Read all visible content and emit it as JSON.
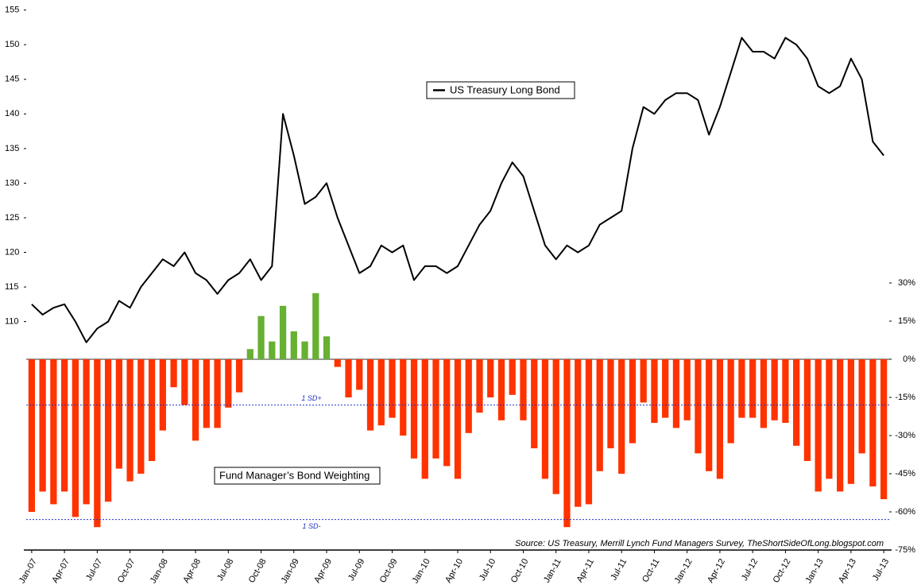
{
  "chart_data": {
    "type": "bar",
    "categories": [
      "Jan-07",
      null,
      null,
      "Apr-07",
      null,
      null,
      "Jul-07",
      null,
      null,
      "Oct-07",
      null,
      null,
      "Jan-08",
      null,
      null,
      "Apr-08",
      null,
      null,
      "Jul-08",
      null,
      null,
      "Oct-08",
      null,
      null,
      "Jan-09",
      null,
      null,
      "Apr-09",
      null,
      null,
      "Jul-09",
      null,
      null,
      "Oct-09",
      null,
      null,
      "Jan-10",
      null,
      null,
      "Apr-10",
      null,
      null,
      "Jul-10",
      null,
      null,
      "Oct-10",
      null,
      null,
      "Jan-11",
      null,
      null,
      "Apr-11",
      null,
      null,
      "Jul-11",
      null,
      null,
      "Oct-11",
      null,
      null,
      "Jan-12",
      null,
      null,
      "Apr-12",
      null,
      null,
      "Jul-12",
      null,
      null,
      "Oct-12",
      null,
      null,
      "Jan-13",
      null,
      null,
      "Apr-13",
      null,
      null,
      "Jul-13"
    ],
    "series": [
      {
        "name": "US Treasury Long Bond",
        "type": "line",
        "color": "#000000",
        "axis": "y",
        "values": [
          112.5,
          111,
          112,
          112.5,
          110,
          107,
          109,
          110,
          113,
          112,
          115,
          117,
          119,
          118,
          120,
          117,
          116,
          114,
          116,
          117,
          119,
          116,
          118,
          140,
          134,
          127,
          128,
          130,
          125,
          121,
          117,
          118,
          121,
          120,
          121,
          116,
          118,
          118,
          117,
          118,
          121,
          124,
          126,
          130,
          133,
          131,
          126,
          121,
          119,
          121,
          120,
          121,
          124,
          125,
          126,
          135,
          141,
          140,
          142,
          143,
          143,
          142,
          137,
          141,
          146,
          151,
          149,
          149,
          148,
          151,
          150,
          148,
          144,
          143,
          144,
          148,
          145,
          136,
          134
        ]
      },
      {
        "name": "Fund Manager’s Bond Weighting",
        "type": "bar",
        "color": "#ff3300",
        "positive_color": "#66b032",
        "axis": "y2",
        "values": [
          -60,
          -52,
          -57,
          -52,
          -62,
          -57,
          -66,
          -56,
          -43,
          -48,
          -45,
          -40,
          -28,
          -11,
          -18,
          -32,
          -27,
          -27,
          -19,
          -13,
          4,
          17,
          7,
          21,
          11,
          7,
          26,
          9,
          -3,
          -15,
          -12,
          -28,
          -26,
          -23,
          -30,
          -39,
          -47,
          -39,
          -42,
          -47,
          -29,
          -21,
          -15,
          -24,
          -14,
          -24,
          -35,
          -47,
          -53,
          -66,
          -58,
          -57,
          -44,
          -35,
          -45,
          -33,
          -17,
          -25,
          -23,
          -27,
          -24,
          -37,
          -44,
          -47,
          -33,
          -23,
          -23,
          -27,
          -24,
          -25,
          -34,
          -40,
          -52,
          -47,
          -52,
          -49,
          -37,
          -50,
          -55
        ]
      }
    ],
    "ylim": [
      77,
      156
    ],
    "yticks": [
      110,
      115,
      120,
      125,
      130,
      135,
      140,
      145,
      150,
      155
    ],
    "y2lim": [
      -75,
      140
    ],
    "y2ticks": [
      {
        "value": 30,
        "label": "30%"
      },
      {
        "value": 15,
        "label": "15%"
      },
      {
        "value": 0,
        "label": "0%"
      },
      {
        "value": -15,
        "label": "-15%"
      },
      {
        "value": -30,
        "label": "-30%"
      },
      {
        "value": -45,
        "label": "-45%"
      },
      {
        "value": -60,
        "label": "-60%"
      },
      {
        "value": -75,
        "label": "-75%"
      }
    ],
    "annotations": [
      {
        "text": "1 SD+",
        "value": -18
      },
      {
        "text": "1 SD-",
        "value": -63
      }
    ],
    "source": "Source: US Treasury, Merrill Lynch Fund Managers Survey, TheShortSideOfLong.blogspot.com"
  }
}
